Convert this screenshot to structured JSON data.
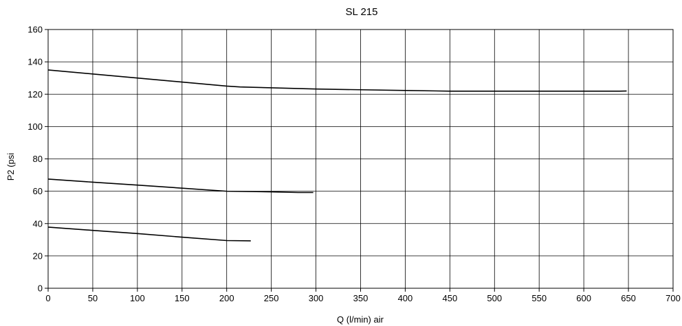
{
  "chart_data": {
    "type": "line",
    "title": "SL 215",
    "xlabel": "Q (l/min) air",
    "ylabel": "P2 (psi",
    "xlim": [
      0,
      700
    ],
    "ylim": [
      0,
      160
    ],
    "xticks": [
      0,
      50,
      100,
      150,
      200,
      250,
      300,
      350,
      400,
      450,
      500,
      550,
      600,
      650,
      700
    ],
    "yticks": [
      0,
      20,
      40,
      60,
      80,
      100,
      120,
      140,
      160
    ],
    "grid": true,
    "legend": "none",
    "line_color": "#000000",
    "grid_color": "#000000",
    "series": [
      {
        "points": [
          [
            0,
            135
          ],
          [
            50,
            132.5
          ],
          [
            100,
            130
          ],
          [
            150,
            127.5
          ],
          [
            200,
            125
          ],
          [
            215,
            124.5
          ],
          [
            300,
            123.2
          ],
          [
            400,
            122.3
          ],
          [
            450,
            121.9
          ],
          [
            550,
            121.9
          ],
          [
            640,
            121.9
          ],
          [
            648,
            122.0
          ]
        ]
      },
      {
        "points": [
          [
            0,
            67.5
          ],
          [
            50,
            65.6
          ],
          [
            100,
            63.8
          ],
          [
            150,
            61.9
          ],
          [
            200,
            60
          ],
          [
            250,
            59.6
          ],
          [
            280,
            59.2
          ],
          [
            297,
            59.2
          ]
        ]
      },
      {
        "points": [
          [
            0,
            37.8
          ],
          [
            50,
            35.8
          ],
          [
            100,
            33.8
          ],
          [
            150,
            31.6
          ],
          [
            200,
            29.5
          ],
          [
            227,
            29.3
          ]
        ]
      }
    ]
  }
}
